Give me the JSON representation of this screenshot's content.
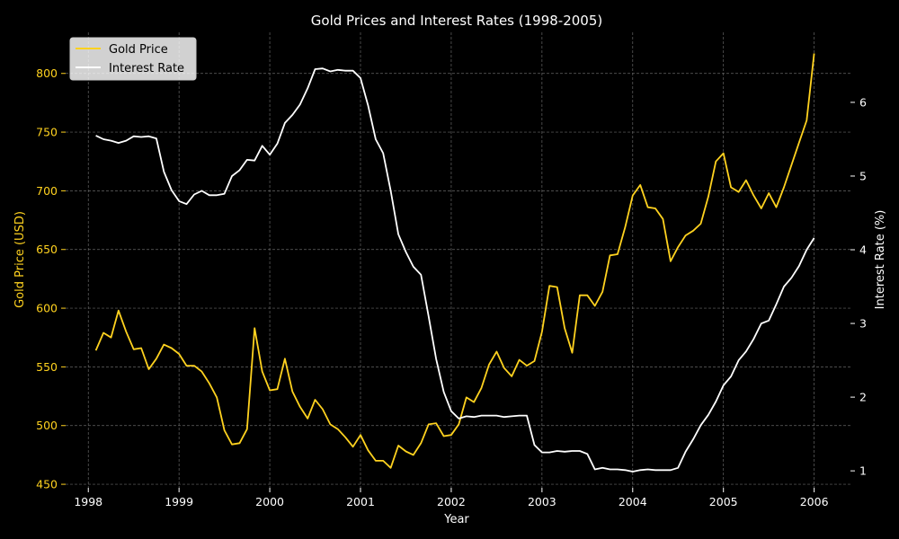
{
  "chart_data": {
    "type": "line",
    "title": "Gold Prices and Interest Rates (1998-2005)",
    "xlabel": "Year",
    "ylabel_left": "Gold Price (USD)",
    "ylabel_right": "Interest Rate (%)",
    "xlim": [
      1997.75,
      2006.4
    ],
    "ylim_left": [
      447,
      835
    ],
    "ylim_right": [
      0.77,
      6.95
    ],
    "xticks": [
      1998,
      1999,
      2000,
      2001,
      2002,
      2003,
      2004,
      2005,
      2006
    ],
    "yticks_left": [
      450,
      500,
      550,
      600,
      650,
      700,
      750,
      800
    ],
    "yticks_right": [
      1,
      2,
      3,
      4,
      5,
      6
    ],
    "grid": true,
    "legend_position": "top-left",
    "colors": {
      "background": "#000000",
      "gold": "#FFD21F",
      "rate": "#FFFFFF",
      "grid": "#666666"
    },
    "x": [
      1998.083,
      1998.167,
      1998.25,
      1998.333,
      1998.417,
      1998.5,
      1998.583,
      1998.667,
      1998.75,
      1998.833,
      1998.917,
      1999.0,
      1999.083,
      1999.167,
      1999.25,
      1999.333,
      1999.417,
      1999.5,
      1999.583,
      1999.667,
      1999.75,
      1999.833,
      1999.917,
      2000.0,
      2000.083,
      2000.167,
      2000.25,
      2000.333,
      2000.417,
      2000.5,
      2000.583,
      2000.667,
      2000.75,
      2000.833,
      2000.917,
      2001.0,
      2001.083,
      2001.167,
      2001.25,
      2001.333,
      2001.417,
      2001.5,
      2001.583,
      2001.667,
      2001.75,
      2001.833,
      2001.917,
      2002.0,
      2002.083,
      2002.167,
      2002.25,
      2002.333,
      2002.417,
      2002.5,
      2002.583,
      2002.667,
      2002.75,
      2002.833,
      2002.917,
      2003.0,
      2003.083,
      2003.167,
      2003.25,
      2003.333,
      2003.417,
      2003.5,
      2003.583,
      2003.667,
      2003.75,
      2003.833,
      2003.917,
      2004.0,
      2004.083,
      2004.167,
      2004.25,
      2004.333,
      2004.417,
      2004.5,
      2004.583,
      2004.667,
      2004.75,
      2004.833,
      2004.917,
      2005.0,
      2005.083,
      2005.167,
      2005.25,
      2005.333,
      2005.417,
      2005.5,
      2005.583,
      2005.667,
      2005.75,
      2005.833,
      2005.917,
      2006.0
    ],
    "series": [
      {
        "name": "Gold Price",
        "axis": "left",
        "color": "#FFD21F",
        "values": [
          564,
          579,
          575,
          598,
          580,
          565,
          566,
          548,
          557,
          569,
          566,
          561,
          551,
          551,
          546,
          536,
          524,
          496,
          484,
          485,
          497,
          583,
          546,
          530,
          531,
          557,
          529,
          516,
          506,
          522,
          514,
          501,
          497,
          490,
          482,
          492,
          479,
          470,
          470,
          464,
          483,
          478,
          475,
          485,
          501,
          502,
          491,
          492,
          501,
          524,
          520,
          532,
          552,
          563,
          549,
          542,
          556,
          551,
          555,
          580,
          619,
          618,
          583,
          562,
          611,
          611,
          602,
          614,
          645,
          646,
          669,
          696,
          705,
          686,
          685,
          676,
          640,
          652,
          662,
          666,
          672,
          695,
          725,
          732,
          703,
          699,
          709,
          696,
          685,
          698,
          686,
          703,
          722,
          741,
          760,
          817
        ]
      },
      {
        "name": "Interest Rate",
        "axis": "right",
        "color": "#FFFFFF",
        "values": [
          5.55,
          5.5,
          5.48,
          5.45,
          5.48,
          5.54,
          5.53,
          5.54,
          5.51,
          5.06,
          4.81,
          4.66,
          4.62,
          4.75,
          4.8,
          4.74,
          4.74,
          4.76,
          5.0,
          5.08,
          5.22,
          5.21,
          5.41,
          5.29,
          5.44,
          5.72,
          5.83,
          5.97,
          6.19,
          6.45,
          6.46,
          6.42,
          6.44,
          6.43,
          6.43,
          6.33,
          5.96,
          5.5,
          5.31,
          4.8,
          4.21,
          3.97,
          3.77,
          3.66,
          3.1,
          2.52,
          2.07,
          1.81,
          1.71,
          1.74,
          1.73,
          1.75,
          1.75,
          1.75,
          1.73,
          1.74,
          1.75,
          1.75,
          1.35,
          1.25,
          1.25,
          1.27,
          1.26,
          1.27,
          1.27,
          1.23,
          1.02,
          1.04,
          1.02,
          1.02,
          1.01,
          0.99,
          1.01,
          1.02,
          1.01,
          1.01,
          1.01,
          1.04,
          1.26,
          1.43,
          1.62,
          1.76,
          1.94,
          2.16,
          2.28,
          2.5,
          2.62,
          2.79,
          3.0,
          3.04,
          3.26,
          3.5,
          3.62,
          3.78,
          4.0,
          4.16
        ]
      }
    ]
  }
}
